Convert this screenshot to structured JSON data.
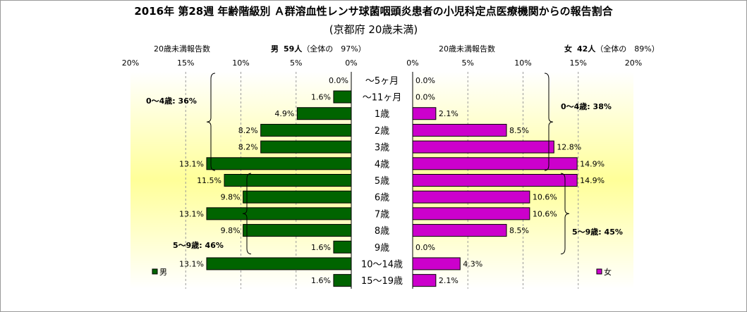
{
  "title": "2016年 第28週 年齢階級別 Ａ群溶血性レンサ球菌咽頭炎患者の小児科定点医療機関からの報告割合",
  "subtitle": "(京都府 20歳未満)",
  "left_header": {
    "label": "20歳未満報告数",
    "sex": "男",
    "count": "59人",
    "ratio": "（全体の　97%）"
  },
  "right_header": {
    "label": "20歳未満報告数",
    "sex": "女",
    "count": "42人",
    "ratio": "（全体の　89%）"
  },
  "colors": {
    "male": "#006400",
    "female": "#cc00cc",
    "bar_border": "#000000",
    "bg_yellow": "#ffff99"
  },
  "chart_data": {
    "type": "bar",
    "orientation": "horizontal-population-pyramid",
    "categories": [
      "～5ヶ月",
      "～11ヶ月",
      "1歳",
      "2歳",
      "3歳",
      "4歳",
      "5歳",
      "6歳",
      "7歳",
      "8歳",
      "9歳",
      "10～14歳",
      "15～19歳"
    ],
    "xlim": [
      0,
      20
    ],
    "xticks": [
      "20%",
      "15%",
      "10%",
      "5%",
      "0%"
    ],
    "xticks_right": [
      "0%",
      "5%",
      "10%",
      "15%",
      "20%"
    ],
    "series": [
      {
        "name": "男",
        "values": [
          0.0,
          1.6,
          4.9,
          8.2,
          8.2,
          13.1,
          11.5,
          9.8,
          13.1,
          9.8,
          1.6,
          13.1,
          1.6
        ],
        "labels": [
          "0.0%",
          "1.6%",
          "4.9%",
          "8.2%",
          "8.2%",
          "13.1%",
          "11.5%",
          "9.8%",
          "13.1%",
          "9.8%",
          "1.6%",
          "13.1%",
          "1.6%"
        ]
      },
      {
        "name": "女",
        "values": [
          0.0,
          0.0,
          2.1,
          8.5,
          12.8,
          14.9,
          14.9,
          10.6,
          10.6,
          8.5,
          0.0,
          4.3,
          2.1
        ],
        "labels": [
          "0.0%",
          "0.0%",
          "2.1%",
          "8.5%",
          "12.8%",
          "14.9%",
          "14.9%",
          "10.6%",
          "10.6%",
          "8.5%",
          "0.0%",
          "4.3%",
          "2.1%"
        ]
      }
    ],
    "annotations": {
      "male_0_4": "0～4歳: 36%",
      "male_5_9": "5～9歳: 46%",
      "female_0_4": "0～4歳: 38%",
      "female_5_9": "5～9歳: 45%"
    },
    "legend": {
      "male": "男",
      "female": "女"
    }
  }
}
